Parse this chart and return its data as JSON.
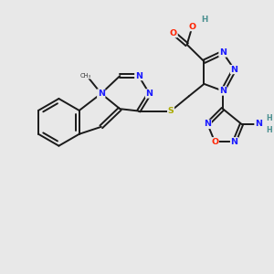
{
  "bg_color": "#e8e8e8",
  "bond_color": "#1a1a1a",
  "bond_width": 1.4,
  "atom_colors": {
    "N": "#1a1aff",
    "O": "#ff2200",
    "S": "#aaaa00",
    "H": "#4a9090",
    "C": "#1a1a1a"
  },
  "font_size": 6.8,
  "figsize": [
    3.0,
    3.0
  ],
  "dpi": 100
}
